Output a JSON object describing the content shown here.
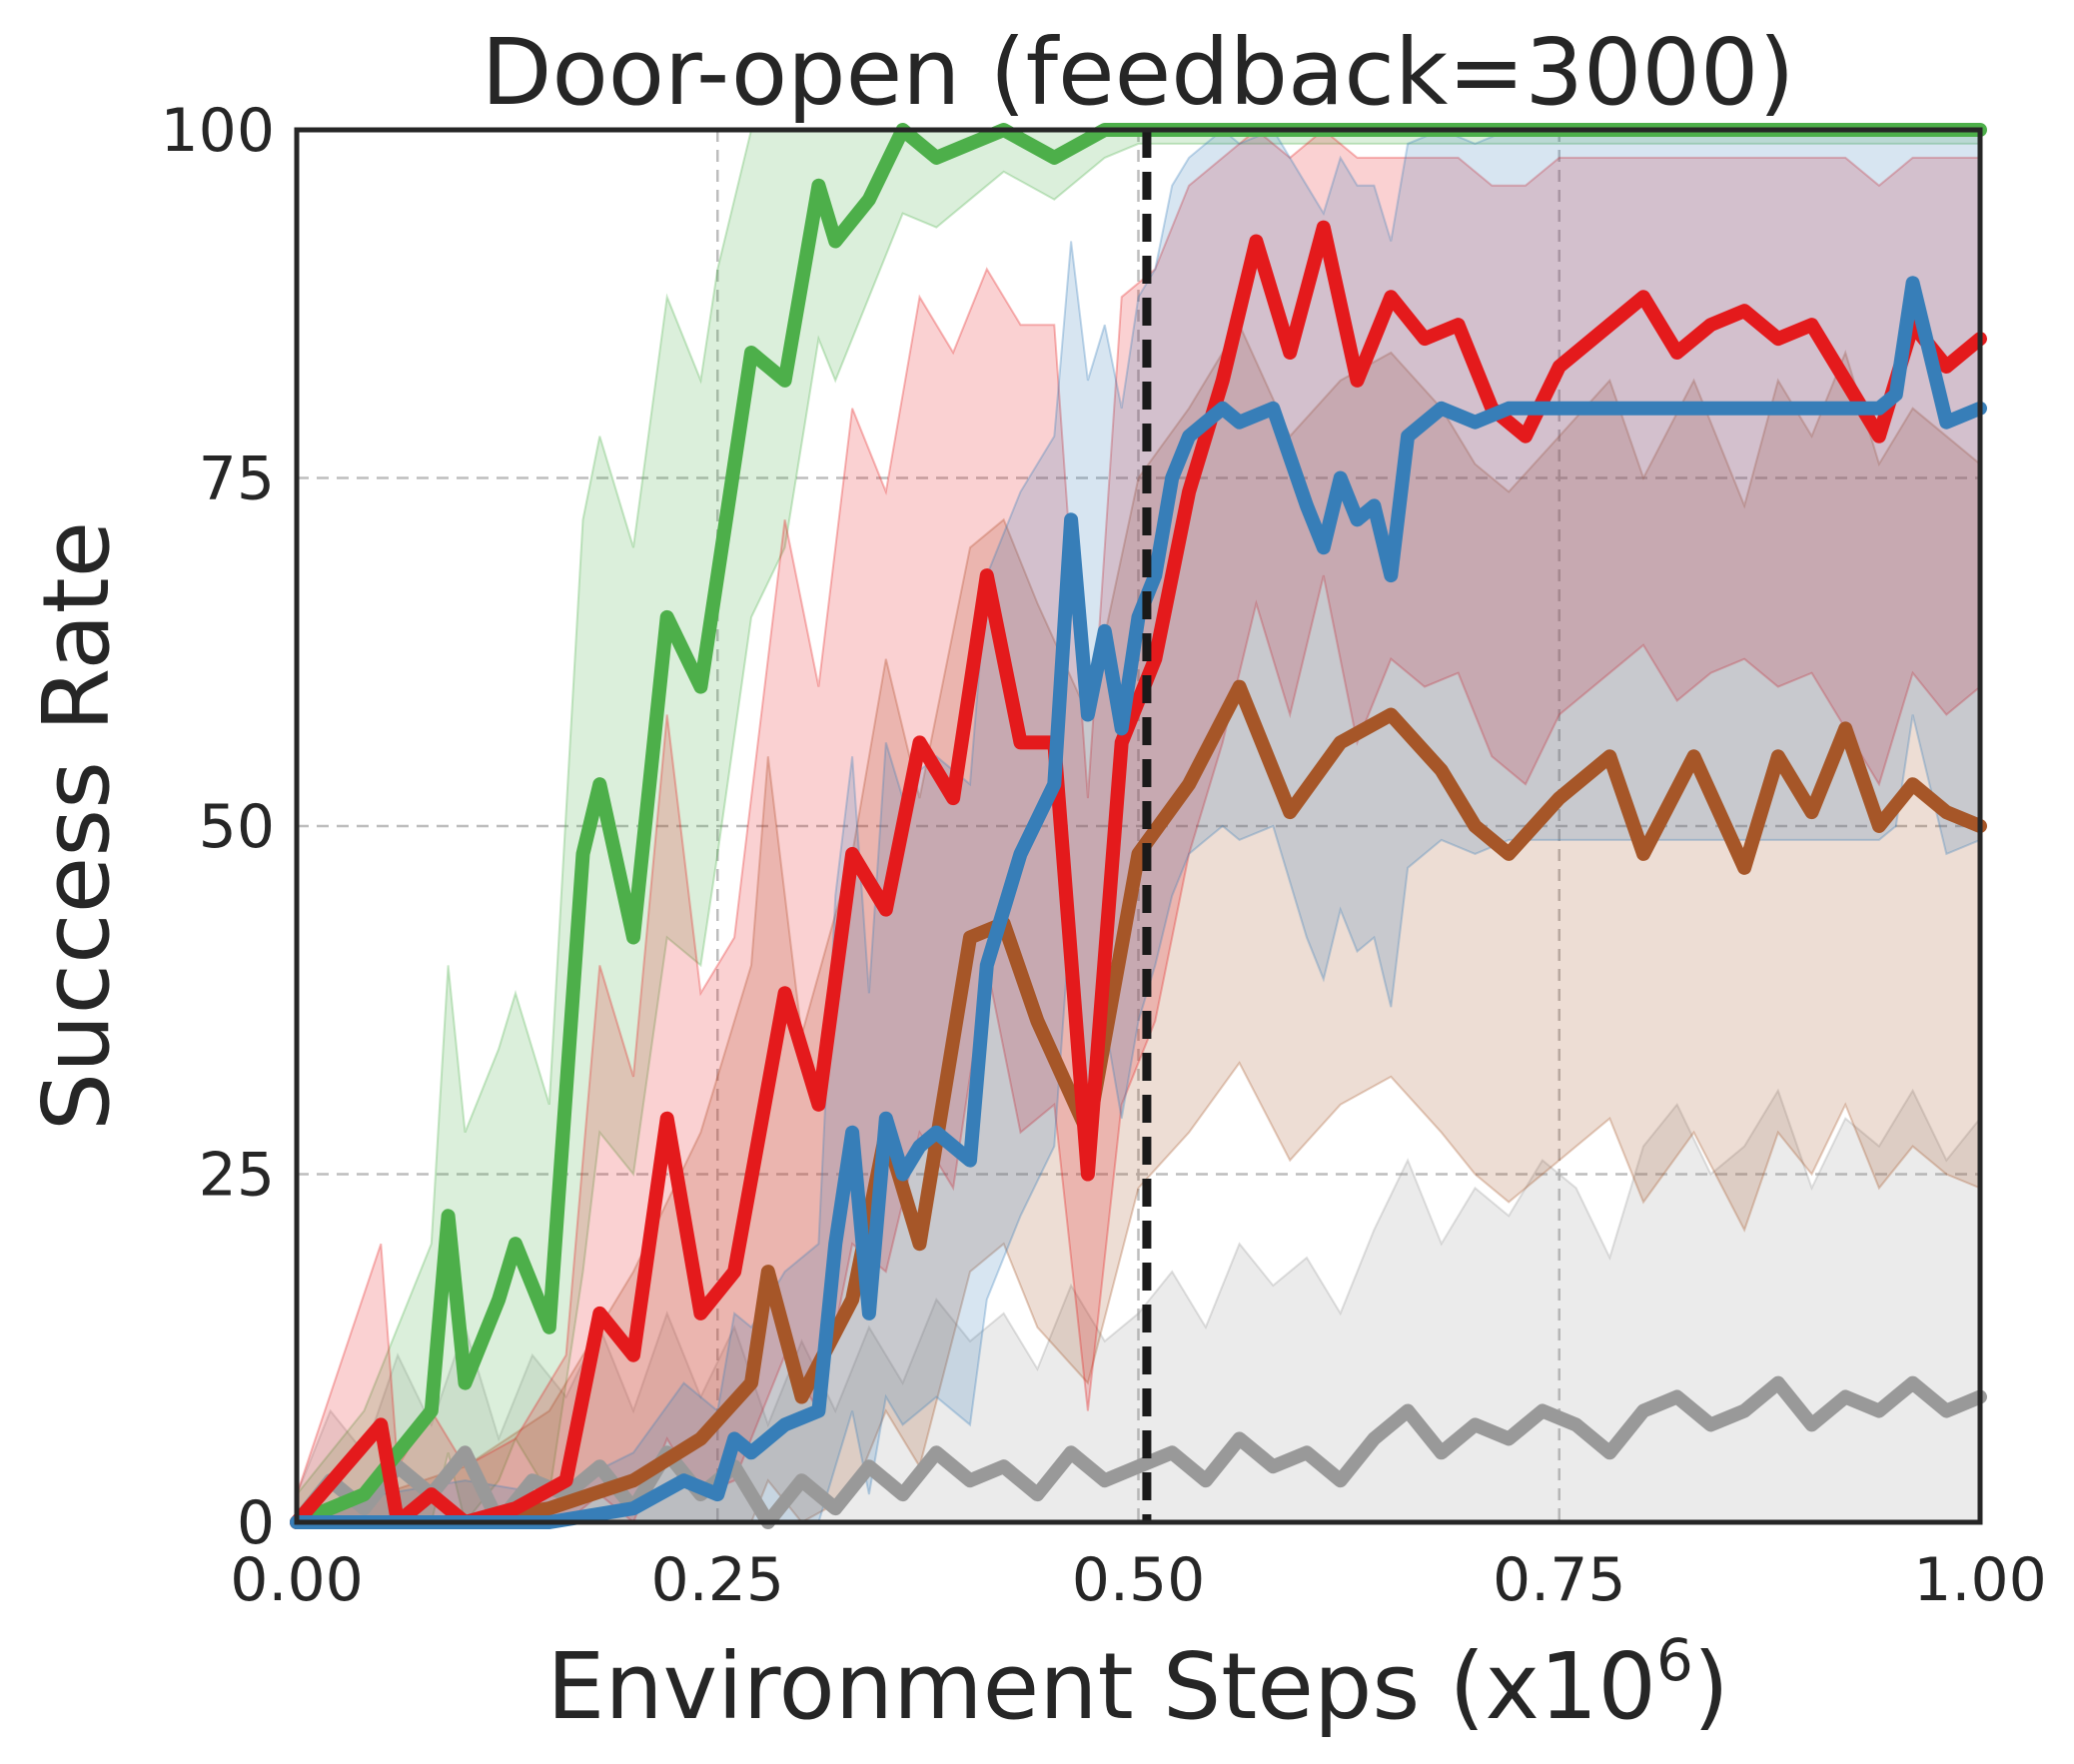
{
  "chart_data": {
    "type": "line",
    "title": "Door-open (feedback=3000)",
    "xlabel": "Environment Steps (x10",
    "xlabel_superscript": "6",
    "xlabel_suffix": ")",
    "ylabel": "Success Rate",
    "xlim": [
      0,
      1
    ],
    "ylim": [
      0,
      100
    ],
    "xticks": [
      "0.00",
      "0.25",
      "0.50",
      "0.75",
      "1.00"
    ],
    "yticks": [
      "0",
      "25",
      "50",
      "75",
      "100"
    ],
    "grid": true,
    "vline_x": 0.505,
    "legend": "none",
    "series": [
      {
        "color": "#999999",
        "x": [
          0,
          0.02,
          0.04,
          0.06,
          0.08,
          0.1,
          0.12,
          0.14,
          0.16,
          0.18,
          0.2,
          0.22,
          0.24,
          0.26,
          0.28,
          0.3,
          0.32,
          0.34,
          0.36,
          0.38,
          0.4,
          0.42,
          0.44,
          0.46,
          0.48,
          0.5,
          0.52,
          0.54,
          0.56,
          0.58,
          0.6,
          0.62,
          0.64,
          0.66,
          0.68,
          0.7,
          0.72,
          0.74,
          0.76,
          0.78,
          0.8,
          0.82,
          0.84,
          0.86,
          0.88,
          0.9,
          0.92,
          0.94,
          0.96,
          0.98,
          1.0
        ],
        "values": [
          0,
          3,
          1,
          4,
          2,
          5,
          0,
          3,
          2,
          4,
          1,
          5,
          2,
          4,
          0,
          3,
          1,
          4,
          2,
          5,
          3,
          4,
          2,
          5,
          3,
          4,
          5,
          3,
          6,
          4,
          5,
          3,
          6,
          8,
          5,
          7,
          6,
          8,
          7,
          5,
          8,
          9,
          7,
          8,
          10,
          7,
          9,
          8,
          10,
          8,
          9
        ],
        "lower": [
          0,
          0,
          0,
          0,
          0,
          0,
          0,
          0,
          0,
          0,
          0,
          0,
          0,
          0,
          0,
          0,
          0,
          0,
          0,
          0,
          0,
          0,
          0,
          0,
          0,
          0,
          0,
          0,
          0,
          0,
          0,
          0,
          0,
          0,
          0,
          0,
          0,
          0,
          0,
          0,
          0,
          0,
          0,
          0,
          0,
          0,
          0,
          0,
          0,
          0,
          0
        ],
        "upper": [
          2,
          8,
          5,
          12,
          7,
          14,
          6,
          12,
          9,
          14,
          8,
          15,
          9,
          14,
          7,
          13,
          8,
          14,
          10,
          16,
          13,
          15,
          11,
          17,
          13,
          15,
          18,
          14,
          20,
          17,
          19,
          15,
          21,
          26,
          20,
          24,
          22,
          26,
          24,
          19,
          27,
          30,
          25,
          27,
          31,
          24,
          29,
          27,
          31,
          26,
          29
        ]
      },
      {
        "color": "#4daf4a",
        "x": [
          0,
          0.02,
          0.04,
          0.06,
          0.08,
          0.09,
          0.1,
          0.12,
          0.13,
          0.15,
          0.17,
          0.18,
          0.2,
          0.22,
          0.24,
          0.25,
          0.27,
          0.29,
          0.31,
          0.32,
          0.34,
          0.36,
          0.38,
          0.4,
          0.42,
          0.45,
          0.48,
          0.5,
          0.55,
          0.6,
          0.7,
          0.8,
          0.9,
          1.0
        ],
        "values": [
          0,
          1,
          2,
          5,
          8,
          22,
          10,
          16,
          20,
          14,
          48,
          53,
          42,
          65,
          60,
          68,
          84,
          82,
          96,
          92,
          95,
          100,
          98,
          99,
          100,
          98,
          100,
          100,
          100,
          100,
          100,
          100,
          100,
          100
        ],
        "lower": [
          0,
          0,
          0,
          0,
          0,
          5,
          0,
          3,
          6,
          2,
          18,
          28,
          25,
          42,
          40,
          48,
          65,
          70,
          85,
          82,
          88,
          94,
          93,
          95,
          97,
          95,
          98,
          99,
          99,
          99,
          99,
          99,
          99,
          99
        ],
        "upper": [
          2,
          5,
          8,
          14,
          20,
          40,
          28,
          34,
          38,
          30,
          72,
          78,
          70,
          88,
          82,
          90,
          100,
          100,
          100,
          100,
          100,
          100,
          100,
          100,
          100,
          100,
          100,
          100,
          100,
          100,
          100,
          100,
          100,
          100
        ]
      },
      {
        "color": "#a65628",
        "x": [
          0,
          0.05,
          0.1,
          0.15,
          0.2,
          0.24,
          0.27,
          0.28,
          0.3,
          0.33,
          0.35,
          0.37,
          0.4,
          0.42,
          0.44,
          0.47,
          0.5,
          0.53,
          0.56,
          0.59,
          0.62,
          0.65,
          0.68,
          0.7,
          0.72,
          0.75,
          0.78,
          0.8,
          0.83,
          0.86,
          0.88,
          0.9,
          0.92,
          0.94,
          0.96,
          0.98,
          1.0
        ],
        "values": [
          0,
          0,
          0,
          1,
          3,
          6,
          10,
          18,
          9,
          16,
          28,
          20,
          42,
          43,
          36,
          28,
          48,
          53,
          60,
          51,
          56,
          58,
          54,
          50,
          48,
          52,
          55,
          48,
          55,
          47,
          55,
          51,
          57,
          50,
          53,
          51,
          50
        ],
        "lower": [
          0,
          0,
          0,
          0,
          0,
          0,
          0,
          3,
          0,
          2,
          8,
          4,
          18,
          20,
          14,
          10,
          24,
          28,
          33,
          26,
          30,
          32,
          28,
          25,
          23,
          26,
          29,
          23,
          28,
          21,
          28,
          25,
          30,
          24,
          27,
          25,
          24
        ],
        "upper": [
          0,
          2,
          4,
          8,
          18,
          28,
          40,
          55,
          35,
          48,
          62,
          52,
          70,
          72,
          66,
          58,
          75,
          80,
          86,
          78,
          82,
          84,
          80,
          76,
          74,
          78,
          82,
          75,
          82,
          73,
          82,
          78,
          84,
          76,
          80,
          78,
          76
        ]
      },
      {
        "color": "#e41a1c",
        "x": [
          0,
          0.05,
          0.06,
          0.08,
          0.1,
          0.13,
          0.16,
          0.18,
          0.2,
          0.22,
          0.24,
          0.26,
          0.29,
          0.31,
          0.33,
          0.35,
          0.37,
          0.39,
          0.41,
          0.43,
          0.45,
          0.47,
          0.49,
          0.51,
          0.53,
          0.55,
          0.57,
          0.59,
          0.61,
          0.63,
          0.65,
          0.67,
          0.69,
          0.71,
          0.73,
          0.75,
          0.78,
          0.8,
          0.82,
          0.84,
          0.86,
          0.88,
          0.9,
          0.92,
          0.94,
          0.96,
          0.98,
          1.0
        ],
        "values": [
          0,
          7,
          0,
          2,
          0,
          1,
          3,
          15,
          12,
          29,
          15,
          18,
          38,
          30,
          48,
          44,
          56,
          52,
          68,
          56,
          56,
          25,
          56,
          62,
          74,
          82,
          92,
          84,
          93,
          82,
          88,
          85,
          86,
          80,
          78,
          83,
          86,
          88,
          84,
          86,
          87,
          85,
          86,
          82,
          78,
          86,
          83,
          85
        ],
        "lower": [
          0,
          0,
          0,
          0,
          0,
          0,
          0,
          2,
          0,
          6,
          2,
          3,
          12,
          8,
          20,
          18,
          28,
          24,
          40,
          28,
          30,
          8,
          30,
          36,
          48,
          56,
          66,
          58,
          68,
          56,
          62,
          60,
          61,
          55,
          53,
          58,
          61,
          63,
          59,
          61,
          62,
          60,
          61,
          57,
          53,
          61,
          58,
          60
        ],
        "upper": [
          2,
          20,
          4,
          8,
          4,
          6,
          12,
          40,
          32,
          58,
          38,
          42,
          72,
          60,
          80,
          74,
          88,
          84,
          90,
          86,
          86,
          52,
          88,
          90,
          96,
          98,
          100,
          98,
          100,
          98,
          98,
          98,
          98,
          96,
          96,
          98,
          98,
          98,
          98,
          98,
          98,
          98,
          98,
          98,
          96,
          98,
          98,
          98
        ]
      },
      {
        "color": "#377eb8",
        "x": [
          0,
          0.05,
          0.1,
          0.15,
          0.2,
          0.23,
          0.25,
          0.26,
          0.27,
          0.29,
          0.31,
          0.32,
          0.33,
          0.34,
          0.35,
          0.36,
          0.37,
          0.38,
          0.4,
          0.41,
          0.43,
          0.45,
          0.46,
          0.47,
          0.48,
          0.49,
          0.5,
          0.51,
          0.52,
          0.53,
          0.54,
          0.55,
          0.56,
          0.58,
          0.6,
          0.61,
          0.62,
          0.63,
          0.64,
          0.65,
          0.66,
          0.68,
          0.7,
          0.72,
          0.75,
          0.78,
          0.8,
          0.83,
          0.86,
          0.88,
          0.9,
          0.92,
          0.94,
          0.95,
          0.96,
          0.98,
          1.0
        ],
        "values": [
          0,
          0,
          0,
          0,
          1,
          3,
          2,
          6,
          5,
          7,
          8,
          20,
          28,
          15,
          29,
          25,
          27,
          28,
          26,
          40,
          48,
          53,
          72,
          58,
          64,
          57,
          65,
          68,
          75,
          78,
          79,
          80,
          79,
          80,
          73,
          70,
          75,
          72,
          73,
          68,
          78,
          80,
          79,
          80,
          80,
          80,
          80,
          80,
          80,
          80,
          80,
          80,
          80,
          81,
          89,
          79,
          80
        ],
        "lower": [
          0,
          0,
          0,
          0,
          0,
          0,
          0,
          0,
          0,
          0,
          0,
          4,
          8,
          2,
          9,
          7,
          8,
          9,
          7,
          16,
          22,
          27,
          44,
          30,
          36,
          29,
          36,
          40,
          45,
          48,
          49,
          50,
          49,
          50,
          42,
          39,
          44,
          41,
          42,
          37,
          47,
          49,
          48,
          49,
          49,
          49,
          49,
          49,
          49,
          49,
          49,
          49,
          49,
          50,
          58,
          48,
          49
        ],
        "upper": [
          0,
          2,
          3,
          2,
          5,
          10,
          8,
          15,
          14,
          18,
          20,
          45,
          55,
          38,
          56,
          52,
          54,
          55,
          53,
          68,
          74,
          78,
          92,
          82,
          86,
          80,
          88,
          90,
          96,
          98,
          99,
          100,
          99,
          100,
          96,
          94,
          98,
          96,
          96,
          92,
          99,
          100,
          99,
          100,
          100,
          100,
          100,
          100,
          100,
          100,
          100,
          100,
          100,
          100,
          100,
          100,
          100
        ]
      }
    ]
  }
}
